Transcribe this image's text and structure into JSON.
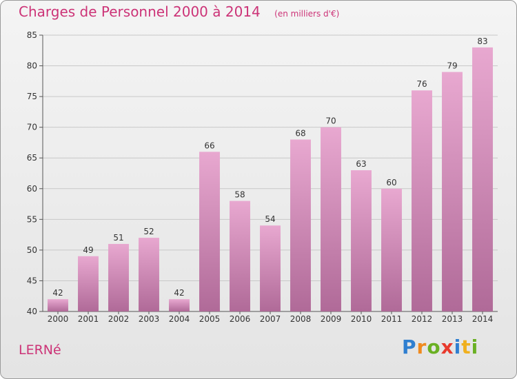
{
  "title": "Charges de Personnel 2000 à 2014",
  "unit": "(en milliers d'€)",
  "commune": "LERNé",
  "logo": {
    "text": "Proxiti",
    "letters": [
      {
        "ch": "P",
        "color": "#2f7fd0"
      },
      {
        "ch": "r",
        "color": "#f08a1e"
      },
      {
        "ch": "o",
        "color": "#6ab023"
      },
      {
        "ch": "x",
        "color": "#e83a2d"
      },
      {
        "ch": "i",
        "color": "#2f7fd0"
      },
      {
        "ch": "t",
        "color": "#f0b01e"
      },
      {
        "ch": "i",
        "color": "#6ab023"
      }
    ]
  },
  "colors": {
    "title": "#cc3377",
    "bar_top": "#e8a8d0",
    "bar_bottom": "#b06a98",
    "grid": "#c8c8c8"
  },
  "chart_data": {
    "type": "bar",
    "title": "Charges de Personnel 2000 à 2014",
    "categories": [
      "2000",
      "2001",
      "2002",
      "2003",
      "2004",
      "2005",
      "2006",
      "2007",
      "2008",
      "2009",
      "2010",
      "2011",
      "2012",
      "2013",
      "2014"
    ],
    "values": [
      42,
      49,
      51,
      52,
      42,
      66,
      58,
      54,
      68,
      70,
      63,
      60,
      76,
      79,
      83
    ],
    "ylim": [
      40,
      85
    ],
    "yticks": [
      40,
      45,
      50,
      55,
      60,
      65,
      70,
      75,
      80,
      85
    ],
    "grid": true,
    "xlabel": "",
    "ylabel": ""
  }
}
